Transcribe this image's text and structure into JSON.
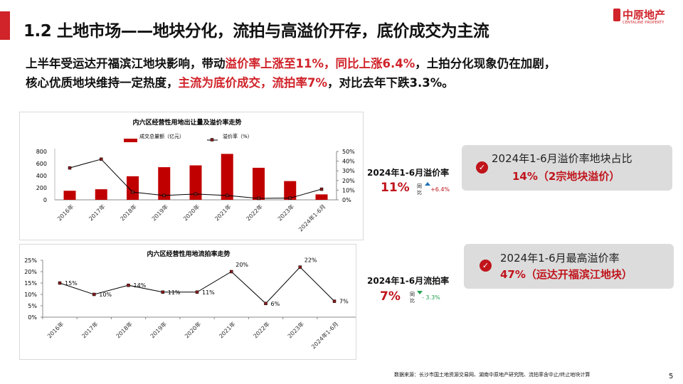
{
  "header": {
    "title": "1.2 土地市场——地块分化，流拍与高溢价开存，底价成交为主流",
    "logo_cn": "中原地产",
    "logo_en": "CENTALINE PROPERTY"
  },
  "summary": {
    "line1": [
      {
        "t": "上半年受运达开福滨江地块影响，带动",
        "red": false
      },
      {
        "t": "溢价率上涨至11%，同比上涨6.4%",
        "red": true
      },
      {
        "t": "，土拍分化现象仍在加剧，",
        "red": false
      }
    ],
    "line2": [
      {
        "t": "核心优质地块维持一定热度，",
        "red": false
      },
      {
        "t": "主流为底价成交，流拍率7%",
        "red": true
      },
      {
        "t": "，对比去年下跌3.3%。",
        "red": false
      }
    ]
  },
  "colors": {
    "accent": "#d0232a",
    "bar": "#c00000",
    "up": "#1f6fb5",
    "down": "#22a04b"
  },
  "chart_data": [
    {
      "type": "bar",
      "title": "内六区经营性用地出让量及溢价率走势",
      "categories": [
        "2016年",
        "2017年",
        "2018年",
        "2019年",
        "2020年",
        "2021年",
        "2022年",
        "2023年",
        "2024年1-6月"
      ],
      "series": [
        {
          "name": "成交总量额（亿元）",
          "type": "bar",
          "axis": "left",
          "values": [
            150,
            175,
            390,
            540,
            570,
            760,
            530,
            310,
            90
          ]
        },
        {
          "name": "溢价率（%）",
          "type": "line",
          "axis": "right",
          "values": [
            33,
            42,
            8,
            4.5,
            6,
            4.5,
            1.5,
            1.8,
            11
          ]
        }
      ],
      "ylim": [
        0,
        800
      ],
      "yticks": [
        "800",
        "600",
        "400",
        "200",
        "0"
      ],
      "y2lim": [
        0,
        50
      ],
      "y2ticks": [
        "50%",
        "40%",
        "30%",
        "20%",
        "10%",
        "0%"
      ],
      "legend": "top"
    },
    {
      "type": "line",
      "title": "内六区经营性用地流拍率走势",
      "categories": [
        "2016年",
        "2017年",
        "2018年",
        "2019年",
        "2020年",
        "2021年",
        "2022年",
        "2023年",
        "2024年1-6月"
      ],
      "values": [
        15,
        10,
        14,
        11,
        11,
        20,
        6,
        22,
        7
      ],
      "labels": [
        "15%",
        "10%",
        "14%",
        "11%",
        "11%",
        "20%",
        "6%",
        "22%",
        "7%"
      ],
      "ylim": [
        0,
        25
      ],
      "yticks": [
        "25%",
        "20%",
        "15%",
        "10%",
        "5%",
        "0%"
      ]
    }
  ],
  "kpis": [
    {
      "label": "2024年1-6月溢价率",
      "value": "11%",
      "yoy": "同比",
      "change": "+6.4%",
      "direction": "up"
    },
    {
      "label": "2024年1-6月流拍率",
      "value": "7%",
      "yoy": "同比",
      "change": "- 3.3%",
      "direction": "down"
    }
  ],
  "cards": [
    {
      "line1": "2024年1-6月溢价率地块占比",
      "line2": "14%（2宗地块溢价）",
      "icon": "check-circle-icon"
    },
    {
      "line1": "2024年1-6月最高溢价率",
      "line2": "47%（运达开福滨江地块）",
      "icon": "check-circle-icon"
    }
  ],
  "footer": {
    "source": "数据来源：长沙市国土地资源交易网、湖南中原地产研究院、流拍率含中止/终止地块计算",
    "page": "5"
  }
}
